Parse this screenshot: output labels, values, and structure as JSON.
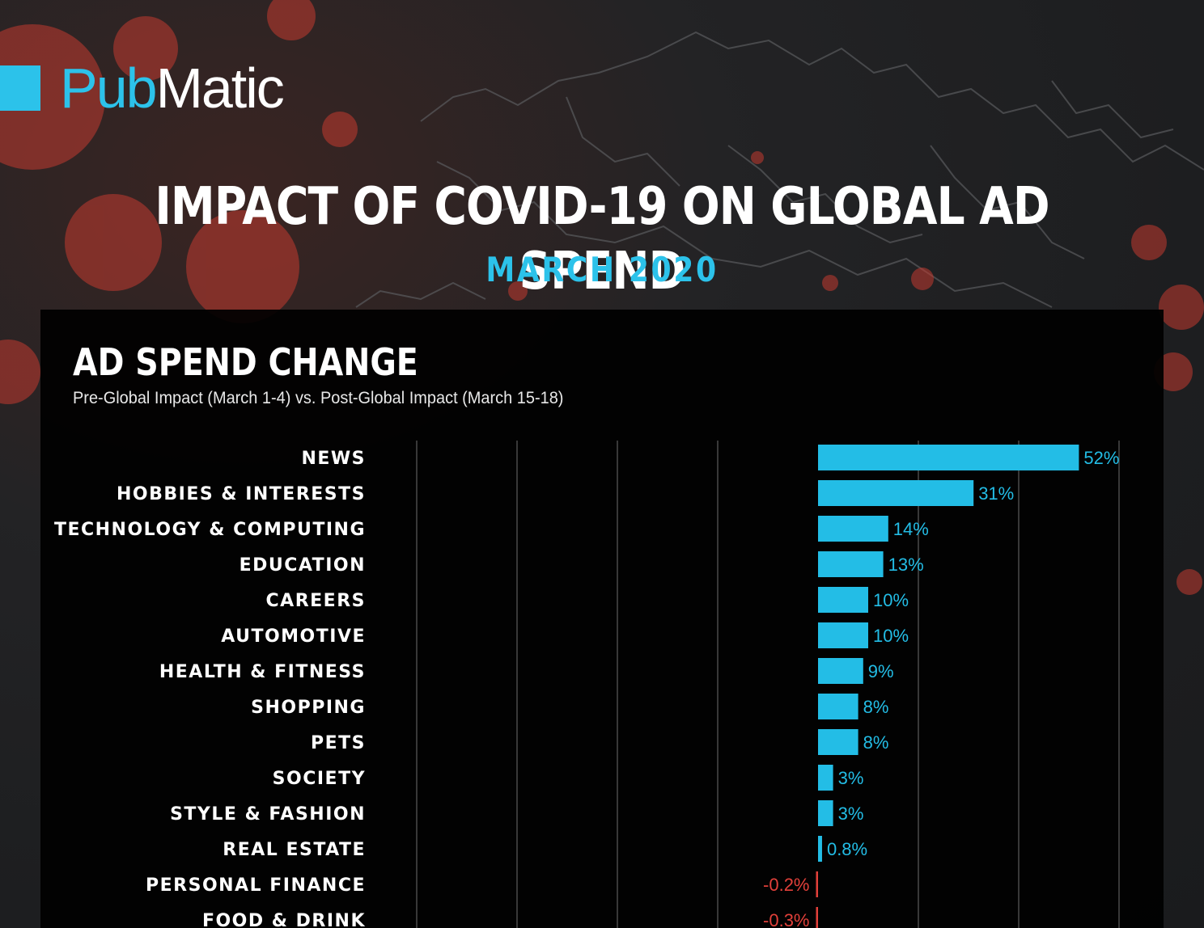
{
  "logo": {
    "part1": "Pub",
    "part2": "Matic"
  },
  "header": {
    "title": "IMPACT OF COVID-19 ON GLOBAL AD SPEND",
    "subtitle": "MARCH 2020"
  },
  "colors": {
    "positive": "#23bde6",
    "negative": "#e2403a",
    "accent": "#2cc2ea"
  },
  "chart_data": {
    "type": "bar",
    "orientation": "horizontal",
    "title": "AD SPEND CHANGE",
    "subtitle": "Pre-Global Impact (March 1-4) vs. Post-Global Impact (March 15-18)",
    "categories": [
      "NEWS",
      "HOBBIES & INTERESTS",
      "TECHNOLOGY & COMPUTING",
      "EDUCATION",
      "CAREERS",
      "AUTOMOTIVE",
      "HEALTH & FITNESS",
      "SHOPPING",
      "PETS",
      "SOCIETY",
      "STYLE & FASHION",
      "REAL ESTATE",
      "PERSONAL FINANCE",
      "FOOD & DRINK"
    ],
    "values": [
      52,
      31,
      14,
      13,
      10,
      10,
      9,
      8,
      8,
      3,
      3,
      0.8,
      -0.2,
      -0.3
    ],
    "value_labels": [
      "52%",
      "31%",
      "14%",
      "13%",
      "10%",
      "10%",
      "9%",
      "8%",
      "8%",
      "3%",
      "3%",
      "0.8%",
      "-0.2%",
      "-0.3%"
    ],
    "unit": "%",
    "xlim": [
      -80,
      60
    ],
    "gridlines": [
      -80,
      -60,
      -40,
      -20,
      20,
      40,
      60
    ],
    "grid": true
  }
}
